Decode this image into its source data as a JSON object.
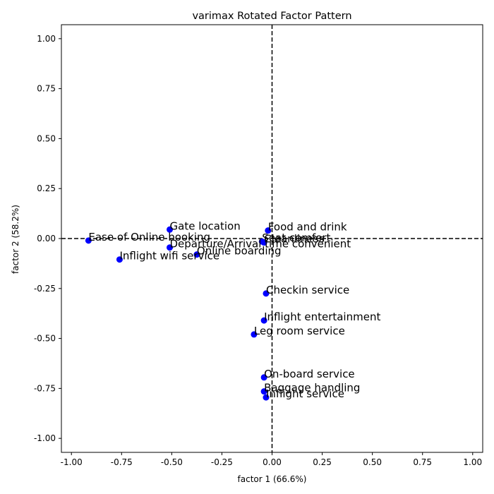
{
  "chart_data": {
    "type": "scatter",
    "title": "varimax Rotated Factor Pattern",
    "xlabel": "factor 1 (66.6%)",
    "ylabel": "factor 2 (58.2%)",
    "xlim": [
      -1.05,
      1.05
    ],
    "ylim": [
      -1.07,
      1.07
    ],
    "xticks": [
      "-1.00",
      "-0.75",
      "-0.50",
      "-0.25",
      "0.00",
      "0.25",
      "0.50",
      "0.75",
      "1.00"
    ],
    "yticks": [
      "-1.00",
      "-0.75",
      "-0.50",
      "-0.25",
      "0.00",
      "0.25",
      "0.50",
      "0.75",
      "1.00"
    ],
    "reference_lines": {
      "x": 0,
      "y": 0,
      "style": "dashed"
    },
    "point_color": "#0000ff",
    "points": [
      {
        "label": "Gate location",
        "x": -0.51,
        "y": 0.045
      },
      {
        "label": "Food and drink",
        "x": -0.02,
        "y": 0.04
      },
      {
        "label": "Ease of Online booking",
        "x": -0.915,
        "y": -0.01
      },
      {
        "label": "Seat comfort",
        "x": -0.05,
        "y": -0.015
      },
      {
        "label": "Cleanliness",
        "x": -0.04,
        "y": -0.02
      },
      {
        "label": "Departure/Arrival time convenient",
        "x": -0.51,
        "y": -0.045
      },
      {
        "label": "Online boarding",
        "x": -0.375,
        "y": -0.08
      },
      {
        "label": "Inflight wifi service",
        "x": -0.76,
        "y": -0.105
      },
      {
        "label": "Checkin service",
        "x": -0.03,
        "y": -0.275
      },
      {
        "label": "Inflight entertainment",
        "x": -0.04,
        "y": -0.41
      },
      {
        "label": "Leg room service",
        "x": -0.09,
        "y": -0.48
      },
      {
        "label": "On-board service",
        "x": -0.04,
        "y": -0.695
      },
      {
        "label": "Baggage handling",
        "x": -0.04,
        "y": -0.765
      },
      {
        "label": "Inflight service",
        "x": -0.03,
        "y": -0.795
      }
    ]
  }
}
